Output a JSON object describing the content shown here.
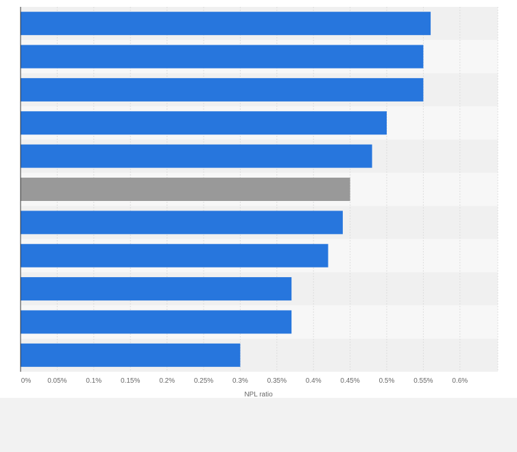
{
  "chart_data": {
    "type": "bar",
    "orientation": "horizontal",
    "categories": [
      "",
      "",
      "",
      "",
      "",
      "",
      "",
      "",
      "",
      "",
      ""
    ],
    "values": [
      0.56,
      0.55,
      0.55,
      0.5,
      0.48,
      0.45,
      0.44,
      0.42,
      0.37,
      0.37,
      0.3
    ],
    "highlight_index": 5,
    "xlabel": "NPL ratio",
    "ylabel": "",
    "xlim": [
      0,
      0.65
    ],
    "xticks": [
      0,
      0.05,
      0.1,
      0.15,
      0.2,
      0.25,
      0.3,
      0.35,
      0.4,
      0.45,
      0.5,
      0.55,
      0.6
    ],
    "xtick_labels": [
      "0%",
      "0.05%",
      "0.1%",
      "0.15%",
      "0.2%",
      "0.25%",
      "0.3%",
      "0.35%",
      "0.4%",
      "0.45%",
      "0.5%",
      "0.55%",
      "0.6%"
    ],
    "grid": true,
    "colors": {
      "bar": "#2776dd",
      "highlight": "#999999",
      "band_light": "#f7f7f7",
      "band_dark": "#f0f0f0",
      "grid": "#dddddd",
      "axis": "#333333"
    }
  }
}
